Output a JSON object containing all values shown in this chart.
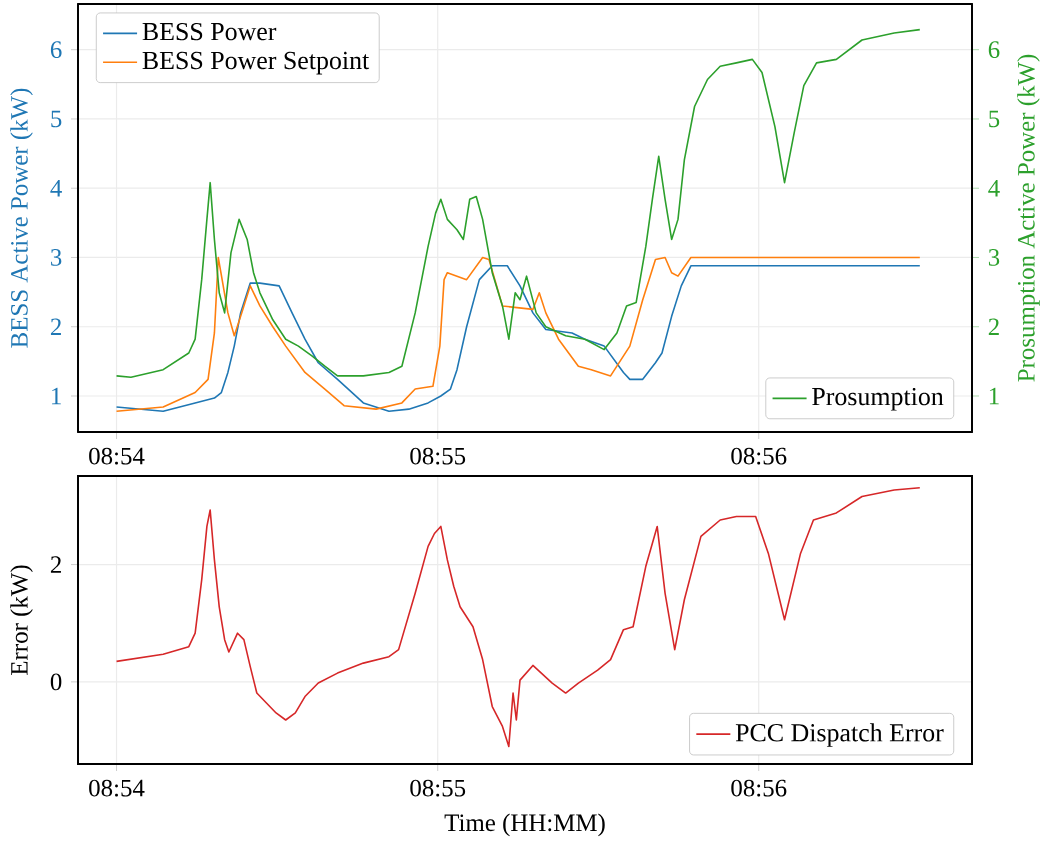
{
  "chart_data": [
    {
      "type": "line",
      "ylabel": "BESS Active Power (kW)",
      "y2label": "Prosumption Active Power (kW)",
      "xlim": [
        8.898,
        8.9444
      ],
      "xticks": [
        {
          "value": 8.9,
          "label": "08:54"
        },
        {
          "value": 8.91667,
          "label": "08:55"
        },
        {
          "value": 8.93333,
          "label": "08:56"
        }
      ],
      "ylim": [
        0.48,
        6.66
      ],
      "yticks": [
        1,
        2,
        3,
        4,
        5,
        6
      ],
      "y2lim": [
        0.48,
        6.66
      ],
      "y2ticks": [
        1,
        2,
        3,
        4,
        5,
        6
      ],
      "grid": true,
      "legend": "top left",
      "series": [
        {
          "name": "BESS Power",
          "color": "#1f77b4",
          "x": [
            8.9,
            8.90242,
            8.90408,
            8.90508,
            8.90544,
            8.90578,
            8.90611,
            8.90644,
            8.90694,
            8.90744,
            8.90844,
            8.90911,
            8.90978,
            8.91047,
            8.91147,
            8.91281,
            8.91414,
            8.91517,
            8.91617,
            8.91683,
            8.91733,
            8.91767,
            8.91817,
            8.91883,
            8.9195,
            8.92028,
            8.92094,
            8.92161,
            8.92228,
            8.92364,
            8.92431,
            8.92531,
            8.92631,
            8.92664,
            8.92731,
            8.92797,
            8.92831,
            8.92881,
            8.92931,
            8.92981,
            8.94169
          ],
          "values": [
            0.84,
            0.78,
            0.9,
            0.97,
            1.05,
            1.34,
            1.72,
            2.2,
            2.63,
            2.63,
            2.59,
            2.2,
            1.82,
            1.48,
            1.24,
            0.9,
            0.78,
            0.81,
            0.9,
            1.0,
            1.1,
            1.38,
            2.0,
            2.68,
            2.88,
            2.88,
            2.59,
            2.2,
            1.96,
            1.91,
            1.82,
            1.72,
            1.34,
            1.24,
            1.24,
            1.48,
            1.62,
            2.15,
            2.59,
            2.88,
            2.88
          ]
        },
        {
          "name": "BESS Power Setpoint",
          "color": "#ff7f0e",
          "x": [
            8.9,
            8.90242,
            8.90408,
            8.90475,
            8.90508,
            8.90528,
            8.90578,
            8.90611,
            8.9065,
            8.90694,
            8.90744,
            8.90811,
            8.90878,
            8.90978,
            8.91081,
            8.91181,
            8.91347,
            8.91481,
            8.9155,
            8.91642,
            8.91678,
            8.917,
            8.91717,
            8.91817,
            8.919,
            8.91933,
            8.92003,
            8.92161,
            8.92194,
            8.92228,
            8.92294,
            8.92397,
            8.92464,
            8.92564,
            8.92664,
            8.92731,
            8.92797,
            8.92847,
            8.92881,
            8.92914,
            8.92981,
            8.94169
          ],
          "values": [
            0.78,
            0.84,
            1.05,
            1.24,
            1.91,
            3.0,
            2.2,
            1.87,
            2.2,
            2.59,
            2.3,
            2.0,
            1.72,
            1.34,
            1.1,
            0.86,
            0.81,
            0.9,
            1.1,
            1.14,
            1.72,
            2.68,
            2.78,
            2.68,
            3.0,
            2.97,
            2.3,
            2.25,
            2.49,
            2.2,
            1.82,
            1.43,
            1.38,
            1.29,
            1.72,
            2.39,
            2.97,
            3.0,
            2.78,
            2.73,
            3.0,
            3.0
          ]
        },
        {
          "name": "Prosumption",
          "color": "#2ca02c",
          "axis": "y2",
          "x": [
            8.9,
            8.90075,
            8.90242,
            8.90375,
            8.90408,
            8.90442,
            8.90469,
            8.90486,
            8.90508,
            8.90533,
            8.90561,
            8.90594,
            8.90636,
            8.90678,
            8.90711,
            8.90744,
            8.90811,
            8.90878,
            8.90944,
            8.91014,
            8.91081,
            8.91147,
            8.91281,
            8.91414,
            8.91481,
            8.9155,
            8.91617,
            8.91656,
            8.91683,
            8.91717,
            8.91767,
            8.918,
            8.91833,
            8.91867,
            8.919,
            8.9195,
            8.92003,
            8.92036,
            8.92069,
            8.92094,
            8.92128,
            8.92178,
            8.92228,
            8.92331,
            8.92431,
            8.92531,
            8.92597,
            8.92647,
            8.92697,
            8.92747,
            8.92781,
            8.92814,
            8.92847,
            8.92881,
            8.92914,
            8.92947,
            8.93,
            8.93067,
            8.93133,
            8.93217,
            8.933,
            8.9335,
            8.93417,
            8.93467,
            8.93517,
            8.93567,
            8.93633,
            8.93736,
            8.93869,
            8.94036,
            8.94169
          ],
          "values": [
            1.29,
            1.27,
            1.38,
            1.62,
            1.82,
            2.68,
            3.55,
            4.08,
            3.26,
            2.49,
            2.2,
            3.07,
            3.55,
            3.26,
            2.78,
            2.49,
            2.1,
            1.82,
            1.72,
            1.58,
            1.43,
            1.29,
            1.29,
            1.34,
            1.43,
            2.2,
            3.16,
            3.64,
            3.84,
            3.55,
            3.4,
            3.26,
            3.84,
            3.88,
            3.55,
            2.78,
            2.3,
            1.82,
            2.49,
            2.39,
            2.73,
            2.2,
            2.0,
            1.87,
            1.82,
            1.67,
            1.91,
            2.3,
            2.35,
            3.16,
            3.84,
            4.46,
            3.84,
            3.26,
            3.55,
            4.41,
            5.18,
            5.57,
            5.76,
            5.81,
            5.86,
            5.67,
            4.89,
            4.08,
            4.8,
            5.48,
            5.81,
            5.86,
            6.14,
            6.24,
            6.29
          ]
        }
      ]
    },
    {
      "type": "line",
      "xlabel": "Time (HH:MM)",
      "ylabel": "Error (kW)",
      "xlim": [
        8.898,
        8.9444
      ],
      "xticks": [
        {
          "value": 8.9,
          "label": "08:54"
        },
        {
          "value": 8.91667,
          "label": "08:55"
        },
        {
          "value": 8.93333,
          "label": "08:56"
        }
      ],
      "ylim": [
        -1.4,
        3.51
      ],
      "yticks": [
        0,
        2
      ],
      "grid": true,
      "legend": "bottom right",
      "series": [
        {
          "name": "PCC Dispatch Error",
          "color": "#d62728",
          "x": [
            8.9,
            8.90242,
            8.90375,
            8.90408,
            8.90442,
            8.90469,
            8.90486,
            8.90508,
            8.90533,
            8.90561,
            8.90583,
            8.90628,
            8.90661,
            8.90694,
            8.90728,
            8.90778,
            8.90828,
            8.90878,
            8.90928,
            8.90978,
            8.91047,
            8.91147,
            8.91281,
            8.91414,
            8.91464,
            8.9155,
            8.91617,
            8.9165,
            8.91683,
            8.91717,
            8.9175,
            8.91783,
            8.9185,
            8.919,
            8.9195,
            8.92003,
            8.92036,
            8.92058,
            8.92075,
            8.92094,
            8.92161,
            8.92261,
            8.92331,
            8.92397,
            8.92497,
            8.92564,
            8.92631,
            8.92681,
            8.92747,
            8.92806,
            8.92847,
            8.92897,
            8.92947,
            8.93033,
            8.93133,
            8.93217,
            8.93317,
            8.93383,
            8.93467,
            8.9355,
            8.93617,
            8.93736,
            8.93869,
            8.94036,
            8.94169
          ],
          "values": [
            0.35,
            0.47,
            0.6,
            0.83,
            1.74,
            2.65,
            2.93,
            2.08,
            1.28,
            0.72,
            0.51,
            0.83,
            0.72,
            0.26,
            -0.19,
            -0.36,
            -0.53,
            -0.65,
            -0.53,
            -0.25,
            -0.02,
            0.15,
            0.32,
            0.43,
            0.55,
            1.51,
            2.31,
            2.53,
            2.65,
            2.08,
            1.63,
            1.28,
            0.94,
            0.38,
            -0.42,
            -0.76,
            -1.1,
            -0.19,
            -0.65,
            0.03,
            0.28,
            -0.02,
            -0.19,
            -0.02,
            0.2,
            0.38,
            0.89,
            0.94,
            1.97,
            2.65,
            1.51,
            0.55,
            1.4,
            2.48,
            2.76,
            2.82,
            2.82,
            2.19,
            1.06,
            2.19,
            2.76,
            2.88,
            3.16,
            3.27,
            3.31
          ]
        }
      ]
    }
  ]
}
